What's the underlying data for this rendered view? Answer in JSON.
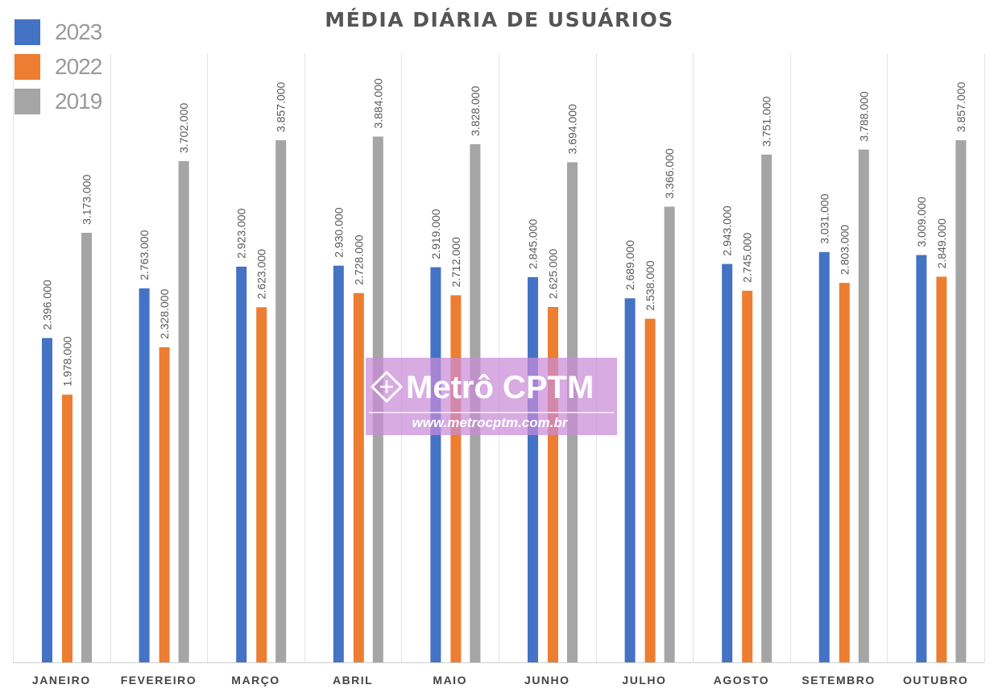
{
  "chart_data": {
    "type": "bar",
    "title": "MÉDIA DIÁRIA DE USUÁRIOS",
    "xlabel": "",
    "ylabel": "",
    "ylim": [
      0,
      4500000
    ],
    "grid": false,
    "legend_placement": "top-left",
    "categories": [
      "JANEIRO",
      "FEVEREIRO",
      "MARÇO",
      "ABRIL",
      "MAIO",
      "JUNHO",
      "JULHO",
      "AGOSTO",
      "SETEMBRO",
      "OUTUBRO"
    ],
    "series": [
      {
        "name": "2023",
        "color": "#4472c4",
        "values": [
          2396000,
          2763000,
          2923000,
          2930000,
          2919000,
          2845000,
          2689000,
          2943000,
          3031000,
          3009000
        ],
        "labels": [
          "2.396.000",
          "2.763.000",
          "2.923.000",
          "2.930.000",
          "2.919.000",
          "2.845.000",
          "2.689.000",
          "2.943.000",
          "3.031.000",
          "3.009.000"
        ]
      },
      {
        "name": "2022",
        "color": "#ed7d31",
        "values": [
          1978000,
          2328000,
          2623000,
          2728000,
          2712000,
          2625000,
          2538000,
          2745000,
          2803000,
          2849000
        ],
        "labels": [
          "1.978.000",
          "2.328.000",
          "2.623.000",
          "2.728.000",
          "2.712.000",
          "2.625.000",
          "2.538.000",
          "2.745.000",
          "2.803.000",
          "2.849.000"
        ]
      },
      {
        "name": "2019",
        "color": "#a5a5a5",
        "values": [
          3173000,
          3702000,
          3857000,
          3884000,
          3828000,
          3694000,
          3366000,
          3751000,
          3788000,
          3857000
        ],
        "labels": [
          "3.173.000",
          "3.702.000",
          "3.857.000",
          "3.884.000",
          "3.828.000",
          "3.694.000",
          "3.366.000",
          "3.751.000",
          "3.788.000",
          "3.857.000"
        ]
      }
    ]
  },
  "watermark": {
    "brand": "Metrô CPTM",
    "url": "www.metrocptm.com.br"
  }
}
